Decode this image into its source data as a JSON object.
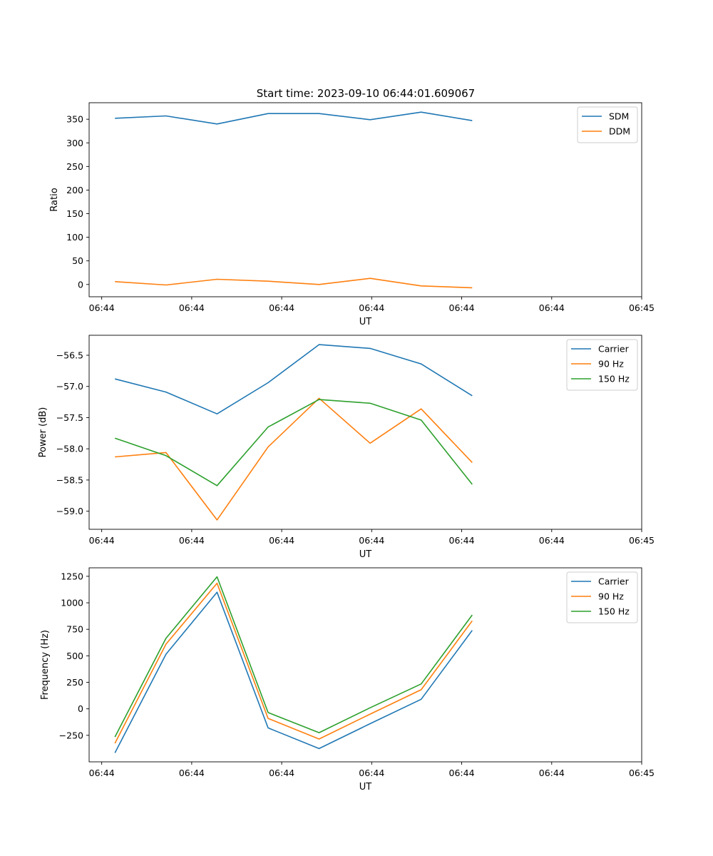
{
  "title": "Start time: 2023-09-10 06:44:01.609067",
  "chart_data": [
    {
      "type": "line",
      "xlabel": "UT",
      "ylabel": "Ratio",
      "x_tick_labels": [
        "06:44",
        "06:44",
        "06:44",
        "06:44",
        "06:44",
        "06:44",
        "06:45"
      ],
      "ylim": [
        -26,
        385
      ],
      "yticks": [
        0,
        50,
        100,
        150,
        200,
        250,
        300,
        350
      ],
      "y_tick_labels": [
        "0",
        "50",
        "100",
        "150",
        "200",
        "250",
        "300",
        "350"
      ],
      "legend_position": "top-right",
      "series": [
        {
          "name": "SDM",
          "color": "#1f77b4",
          "values": [
            352,
            357,
            340,
            362,
            362,
            349,
            365,
            347
          ]
        },
        {
          "name": "DDM",
          "color": "#ff7f0e",
          "values": [
            6,
            -1,
            11,
            7,
            0,
            13,
            -3,
            -7
          ]
        }
      ]
    },
    {
      "type": "line",
      "xlabel": "UT",
      "ylabel": "Power (dB)",
      "x_tick_labels": [
        "06:44",
        "06:44",
        "06:44",
        "06:44",
        "06:44",
        "06:44",
        "06:45"
      ],
      "ylim": [
        -59.29,
        -56.18
      ],
      "yticks": [
        -59.0,
        -58.5,
        -58.0,
        -57.5,
        -57.0,
        -56.5
      ],
      "y_tick_labels": [
        "−59.0",
        "−58.5",
        "−58.0",
        "−57.5",
        "−57.0",
        "−56.5"
      ],
      "legend_position": "top-right",
      "series": [
        {
          "name": "Carrier",
          "color": "#1f77b4",
          "values": [
            -56.88,
            -57.09,
            -57.44,
            -56.94,
            -56.33,
            -56.39,
            -56.64,
            -57.15
          ]
        },
        {
          "name": "90 Hz",
          "color": "#ff7f0e",
          "values": [
            -58.13,
            -58.06,
            -59.14,
            -57.97,
            -57.19,
            -57.91,
            -57.36,
            -58.22
          ]
        },
        {
          "name": "150 Hz",
          "color": "#2ca02c",
          "values": [
            -57.83,
            -58.11,
            -58.59,
            -57.65,
            -57.21,
            -57.27,
            -57.54,
            -58.57
          ]
        }
      ]
    },
    {
      "type": "line",
      "xlabel": "UT",
      "ylabel": "Frequency (Hz)",
      "x_tick_labels": [
        "06:44",
        "06:44",
        "06:44",
        "06:44",
        "06:44",
        "06:44",
        "06:45"
      ],
      "ylim": [
        -500,
        1330
      ],
      "yticks": [
        -250,
        0,
        250,
        500,
        750,
        1000,
        1250
      ],
      "y_tick_labels": [
        "−250",
        "0",
        "250",
        "500",
        "750",
        "1000",
        "1250"
      ],
      "legend_position": "top-right",
      "series": [
        {
          "name": "Carrier",
          "color": "#1f77b4",
          "values": [
            -415,
            515,
            1100,
            -180,
            -375,
            -140,
            90,
            740
          ]
        },
        {
          "name": "90 Hz",
          "color": "#ff7f0e",
          "values": [
            -325,
            610,
            1185,
            -90,
            -285,
            -50,
            180,
            830
          ]
        },
        {
          "name": "150 Hz",
          "color": "#2ca02c",
          "values": [
            -265,
            665,
            1245,
            -35,
            -225,
            10,
            235,
            885
          ]
        }
      ]
    }
  ]
}
